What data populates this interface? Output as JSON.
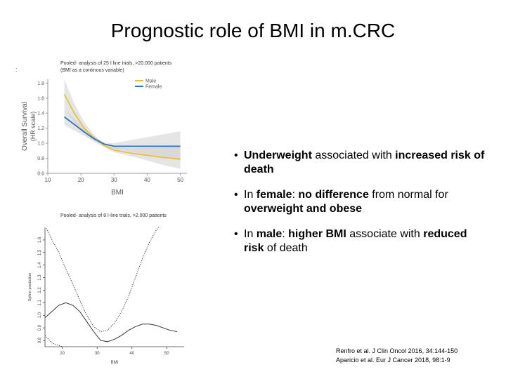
{
  "slide": {
    "title": "Prognostic role of BMI in m.CRC",
    "stray_mark": ":"
  },
  "captions": {
    "top": [
      "Pooled- analysis of 25 I line trials, >20.000 patients",
      "(BMI as a continous variable)"
    ],
    "bottom": "Pooled- analysis of 8 I-line trials, >2.000 patients"
  },
  "bullets": [
    {
      "parts": [
        {
          "t": "Underweight",
          "b": true
        },
        {
          "t": " associated with ",
          "b": false
        },
        {
          "t": "increased risk of death",
          "b": true
        }
      ]
    },
    {
      "parts": [
        {
          "t": "In ",
          "b": false
        },
        {
          "t": "female",
          "b": true
        },
        {
          "t": ": ",
          "b": false
        },
        {
          "t": "no difference",
          "b": true
        },
        {
          "t": " from normal for ",
          "b": false
        },
        {
          "t": "overweight and obese",
          "b": true
        }
      ]
    },
    {
      "parts": [
        {
          "t": "In ",
          "b": false
        },
        {
          "t": "male",
          "b": true
        },
        {
          "t": ": ",
          "b": false
        },
        {
          "t": "higher BMI",
          "b": true
        },
        {
          "t": " associate with ",
          "b": false
        },
        {
          "t": "reduced risk",
          "b": true
        },
        {
          "t": " of death",
          "b": false
        }
      ]
    }
  ],
  "references": [
    "Renfro et al. J Clin Oncol 2016, 34:144-150",
    "Aparicio et al. Eur J Cancer 2018, 98:1-9"
  ],
  "chart_data": [
    {
      "type": "line",
      "title": "",
      "xlabel": "BMI",
      "ylabel": [
        "Overall Survival",
        "(HR scale)"
      ],
      "xlim": [
        10,
        52
      ],
      "ylim": [
        0.6,
        1.85
      ],
      "xticks": [
        10,
        20,
        30,
        40,
        50
      ],
      "yticks": [
        0.6,
        0.8,
        1.0,
        1.2,
        1.4,
        1.6,
        1.8
      ],
      "grid": false,
      "legend": "top-right",
      "colors": {
        "male": "#e6c13c",
        "female": "#2f72b8",
        "band": "#cfcfcf"
      },
      "series": [
        {
          "name": "Male",
          "x": [
            15,
            18,
            21,
            24,
            27,
            30,
            35,
            40,
            45,
            50
          ],
          "y": [
            1.65,
            1.4,
            1.2,
            1.07,
            0.97,
            0.91,
            0.87,
            0.84,
            0.81,
            0.79
          ],
          "lower": [
            1.47,
            1.27,
            1.12,
            1.02,
            0.95,
            0.88,
            0.83,
            0.77,
            0.71,
            0.66
          ],
          "upper": [
            1.85,
            1.53,
            1.28,
            1.11,
            0.99,
            0.95,
            0.93,
            0.94,
            0.95,
            0.97
          ]
        },
        {
          "name": "Female",
          "x": [
            15,
            18,
            21,
            24,
            27,
            30,
            35,
            40,
            45,
            50
          ],
          "y": [
            1.35,
            1.25,
            1.15,
            1.06,
            0.99,
            0.96,
            0.96,
            0.96,
            0.96,
            0.96
          ],
          "lower": [
            1.24,
            1.17,
            1.1,
            1.03,
            0.97,
            0.93,
            0.89,
            0.85,
            0.81,
            0.77
          ],
          "upper": [
            1.46,
            1.33,
            1.2,
            1.09,
            1.01,
            1.0,
            1.04,
            1.08,
            1.12,
            1.16
          ]
        }
      ]
    },
    {
      "type": "line",
      "title": "",
      "xlabel": "BMI",
      "ylabel": "Spline prediction",
      "xlim": [
        15,
        55
      ],
      "ylim": [
        0.75,
        1.7
      ],
      "xticks": [
        20,
        30,
        40,
        50
      ],
      "yticks": [
        0.8,
        0.9,
        1.0,
        1.1,
        1.2,
        1.3,
        1.4,
        1.5,
        1.6
      ],
      "grid": false,
      "series": [
        {
          "role": "estimate",
          "style": "solid",
          "x": [
            15,
            17,
            19,
            21,
            23,
            25,
            27,
            29,
            31,
            33,
            35,
            37,
            39,
            41,
            43,
            45,
            47,
            49,
            51,
            53
          ],
          "y": [
            0.98,
            1.03,
            1.08,
            1.1,
            1.08,
            1.03,
            0.95,
            0.87,
            0.8,
            0.79,
            0.81,
            0.84,
            0.88,
            0.91,
            0.93,
            0.93,
            0.92,
            0.9,
            0.88,
            0.87
          ]
        },
        {
          "role": "upper",
          "style": "dotted",
          "x": [
            15,
            17,
            19,
            21,
            23,
            25,
            27,
            29,
            31,
            33,
            35,
            37,
            39,
            41,
            43,
            45,
            47,
            49,
            50
          ],
          "y": [
            1.72,
            1.6,
            1.5,
            1.37,
            1.25,
            1.12,
            1.0,
            0.91,
            0.87,
            0.88,
            0.94,
            1.03,
            1.15,
            1.3,
            1.45,
            1.58,
            1.68,
            1.74,
            1.76
          ]
        },
        {
          "role": "lower",
          "style": "dotted",
          "x": [
            15,
            17,
            19,
            21,
            23,
            25,
            27,
            29,
            31,
            33,
            35
          ],
          "y": [
            0.84,
            0.78,
            0.76,
            0.74,
            0.73,
            0.72,
            0.71,
            0.7,
            0.7,
            0.7,
            0.7
          ]
        }
      ]
    }
  ]
}
